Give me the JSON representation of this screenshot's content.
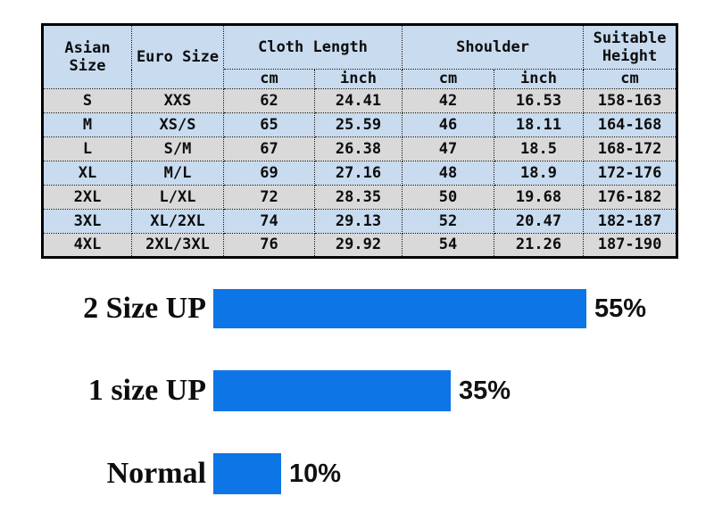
{
  "size_chart": {
    "headers": {
      "asian_size": "Asian\nSize",
      "euro_size": "Euro Size",
      "cloth_length": "Cloth Length",
      "shoulder": "Shoulder",
      "suitable_height": "Suitable\nHeight",
      "sub_cloth_cm": "cm",
      "sub_cloth_inch": "inch",
      "sub_shoulder_cm": "cm",
      "sub_shoulder_inch": "inch",
      "sub_height_cm": "cm"
    },
    "rows": [
      [
        "S",
        "XXS",
        "62",
        "24.41",
        "42",
        "16.53",
        "158-163"
      ],
      [
        "M",
        "XS/S",
        "65",
        "25.59",
        "46",
        "18.11",
        "164-168"
      ],
      [
        "L",
        "S/M",
        "67",
        "26.38",
        "47",
        "18.5",
        "168-172"
      ],
      [
        "XL",
        "M/L",
        "69",
        "27.16",
        "48",
        "18.9",
        "172-176"
      ],
      [
        "2XL",
        "L/XL",
        "72",
        "28.35",
        "50",
        "19.68",
        "176-182"
      ],
      [
        "3XL",
        "XL/2XL",
        "74",
        "29.13",
        "52",
        "20.47",
        "182-187"
      ],
      [
        "4XL",
        "2XL/3XL",
        "76",
        "29.92",
        "54",
        "21.26",
        "187-190"
      ]
    ]
  },
  "chart_data": {
    "type": "bar",
    "orientation": "horizontal",
    "categories": [
      "2 Size UP",
      "1 size UP",
      "Normal"
    ],
    "values": [
      55,
      35,
      10
    ],
    "value_labels": [
      "55%",
      "35%",
      "10%"
    ],
    "xlim": [
      0,
      100
    ],
    "grid": false,
    "legend": "none",
    "bar_color": "#0e75e6"
  },
  "colors": {
    "table_header_blue": "#c8dbef",
    "table_row_blue": "#c8dbef",
    "table_row_gray": "#d9d9d9",
    "bar_blue": "#0e75e6",
    "border_black": "#000000"
  }
}
